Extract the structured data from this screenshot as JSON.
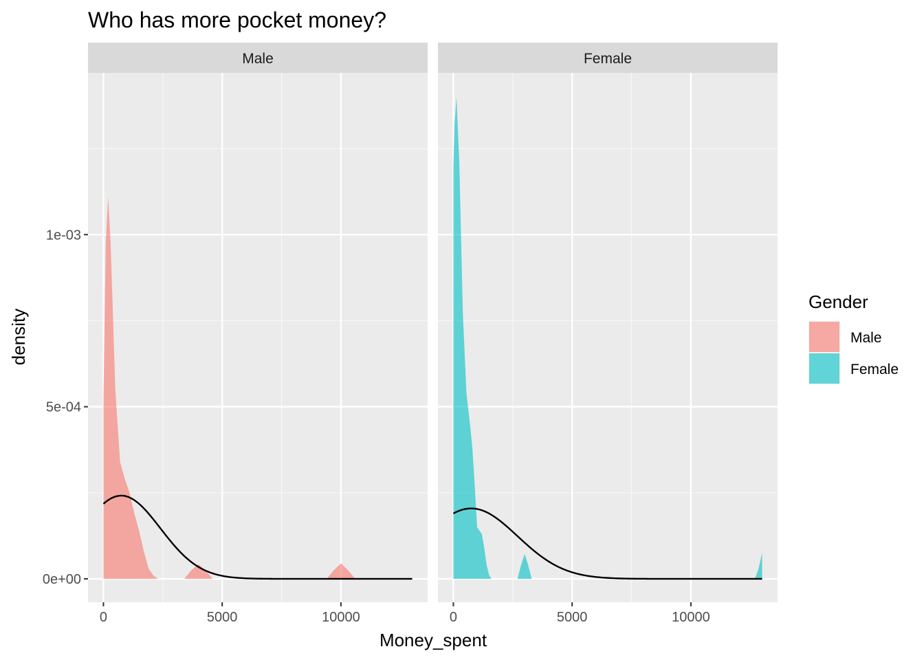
{
  "chart_data": {
    "type": "area",
    "title": "Who has more pocket money?",
    "xlabel": "Money_spent",
    "ylabel": "density",
    "xlim": [
      -650,
      13650
    ],
    "ylim": [
      -6.8e-05,
      0.00147
    ],
    "x_ticks": [
      0,
      5000,
      10000
    ],
    "x_tick_labels": [
      "0",
      "5000",
      "10000"
    ],
    "y_ticks": [
      0,
      0.0005,
      0.001
    ],
    "y_tick_labels": [
      "0e+00",
      "5e-04",
      "1e-03"
    ],
    "grid": true,
    "legend": {
      "title": "Gender",
      "position": "right",
      "entries": [
        {
          "label": "Male",
          "color": "#F8766D"
        },
        {
          "label": "Female",
          "color": "#00BFC4"
        }
      ]
    },
    "fill_alpha": 0.6,
    "facets": [
      {
        "label": "Male",
        "color": "#F8766D",
        "density": {
          "x": [
            0,
            100,
            200,
            300,
            500,
            700,
            900,
            1100,
            1300,
            1500,
            1700,
            1900,
            2100,
            2300,
            3400,
            3700,
            4000,
            4300,
            4600,
            9400,
            9700,
            10000,
            10300,
            10600
          ],
          "y": [
            0.00052,
            0.00098,
            0.00111,
            0.00098,
            0.00055,
            0.00034,
            0.00029,
            0.00025,
            0.00019,
            0.00014,
            8e-05,
            3e-05,
            1e-05,
            0,
            0,
            2.5e-05,
            4.2e-05,
            2.5e-05,
            0,
            0,
            2.5e-05,
            4.5e-05,
            2.5e-05,
            0
          ]
        },
        "normal_curve": {
          "mean": 750,
          "sd": 1650,
          "x_range": [
            0,
            13000
          ]
        }
      },
      {
        "label": "Female",
        "color": "#00BFC4",
        "density": {
          "x": [
            0,
            50,
            130,
            250,
            400,
            550,
            700,
            800,
            900,
            1000,
            1100,
            1200,
            1300,
            1400,
            1500,
            1600,
            2700,
            2850,
            3000,
            3150,
            3300,
            12700,
            12850,
            13000
          ],
          "y": [
            0.0012,
            0.00132,
            0.0014,
            0.00121,
            0.00077,
            0.00054,
            0.00045,
            0.00038,
            0.00027,
            0.00015,
            0.00014,
            0.00013,
            9e-05,
            4e-05,
            1.2e-05,
            0,
            0,
            4e-05,
            7.2e-05,
            4e-05,
            0,
            0,
            3e-05,
            7.5e-05
          ]
        },
        "normal_curve": {
          "mean": 750,
          "sd": 1950,
          "x_range": [
            0,
            13000
          ]
        }
      }
    ]
  }
}
